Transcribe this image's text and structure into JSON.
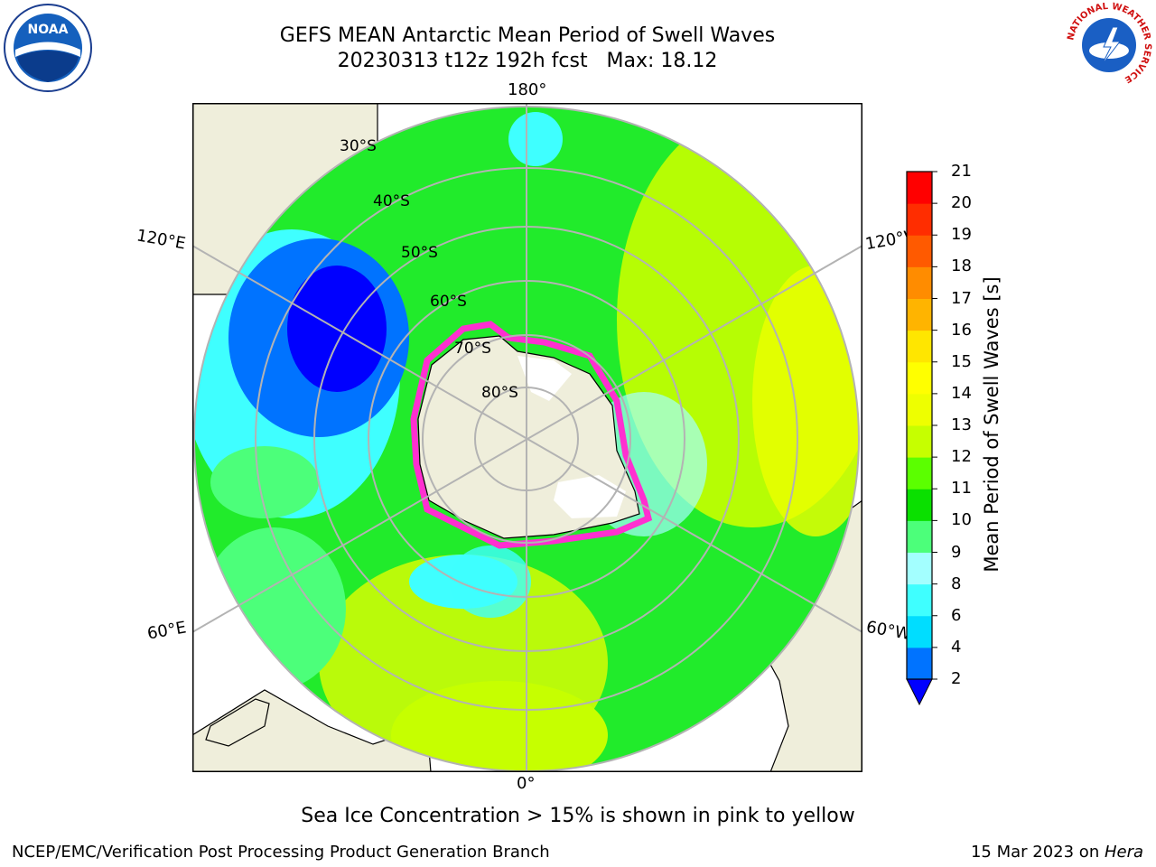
{
  "title_line1": "GEFS MEAN Antarctic Mean Period of Swell Waves",
  "title_line2": "20230313 t12z 192h fcst   Max: 18.12",
  "map": {
    "lon_labels": {
      "top": "180°",
      "bottom": "0°",
      "left_upper": "120°E",
      "right_upper": "120°W",
      "left_lower": "60°E",
      "right_lower": "60°W"
    },
    "lat_labels": [
      "30°S",
      "40°S",
      "50°S",
      "60°S",
      "70°S",
      "80°S"
    ]
  },
  "colorbar": {
    "label": "Mean Period of Swell Waves [s]",
    "ticks": [
      "2",
      "4",
      "6",
      "8",
      "9",
      "10",
      "11",
      "12",
      "13",
      "14",
      "15",
      "16",
      "17",
      "18",
      "19",
      "20",
      "21"
    ],
    "colors": [
      "#0000ff",
      "#0073ff",
      "#00ddff",
      "#3fffff",
      "#a3ffff",
      "#4cff7a",
      "#0ae000",
      "#5bff00",
      "#c6ff00",
      "#eeff00",
      "#ffff00",
      "#ffe600",
      "#ffb400",
      "#ff8c00",
      "#ff5a00",
      "#ff2d00",
      "#ff0000"
    ]
  },
  "note": "Sea Ice Concentration > 15% is shown in pink to yellow",
  "footer_left": "NCEP/EMC/Verification Post Processing Product Generation Branch",
  "footer_date": "15 Mar 2023 on ",
  "footer_host": "Hera",
  "logos": {
    "left": "NOAA",
    "right": "NATIONAL WEATHER SERVICE"
  }
}
